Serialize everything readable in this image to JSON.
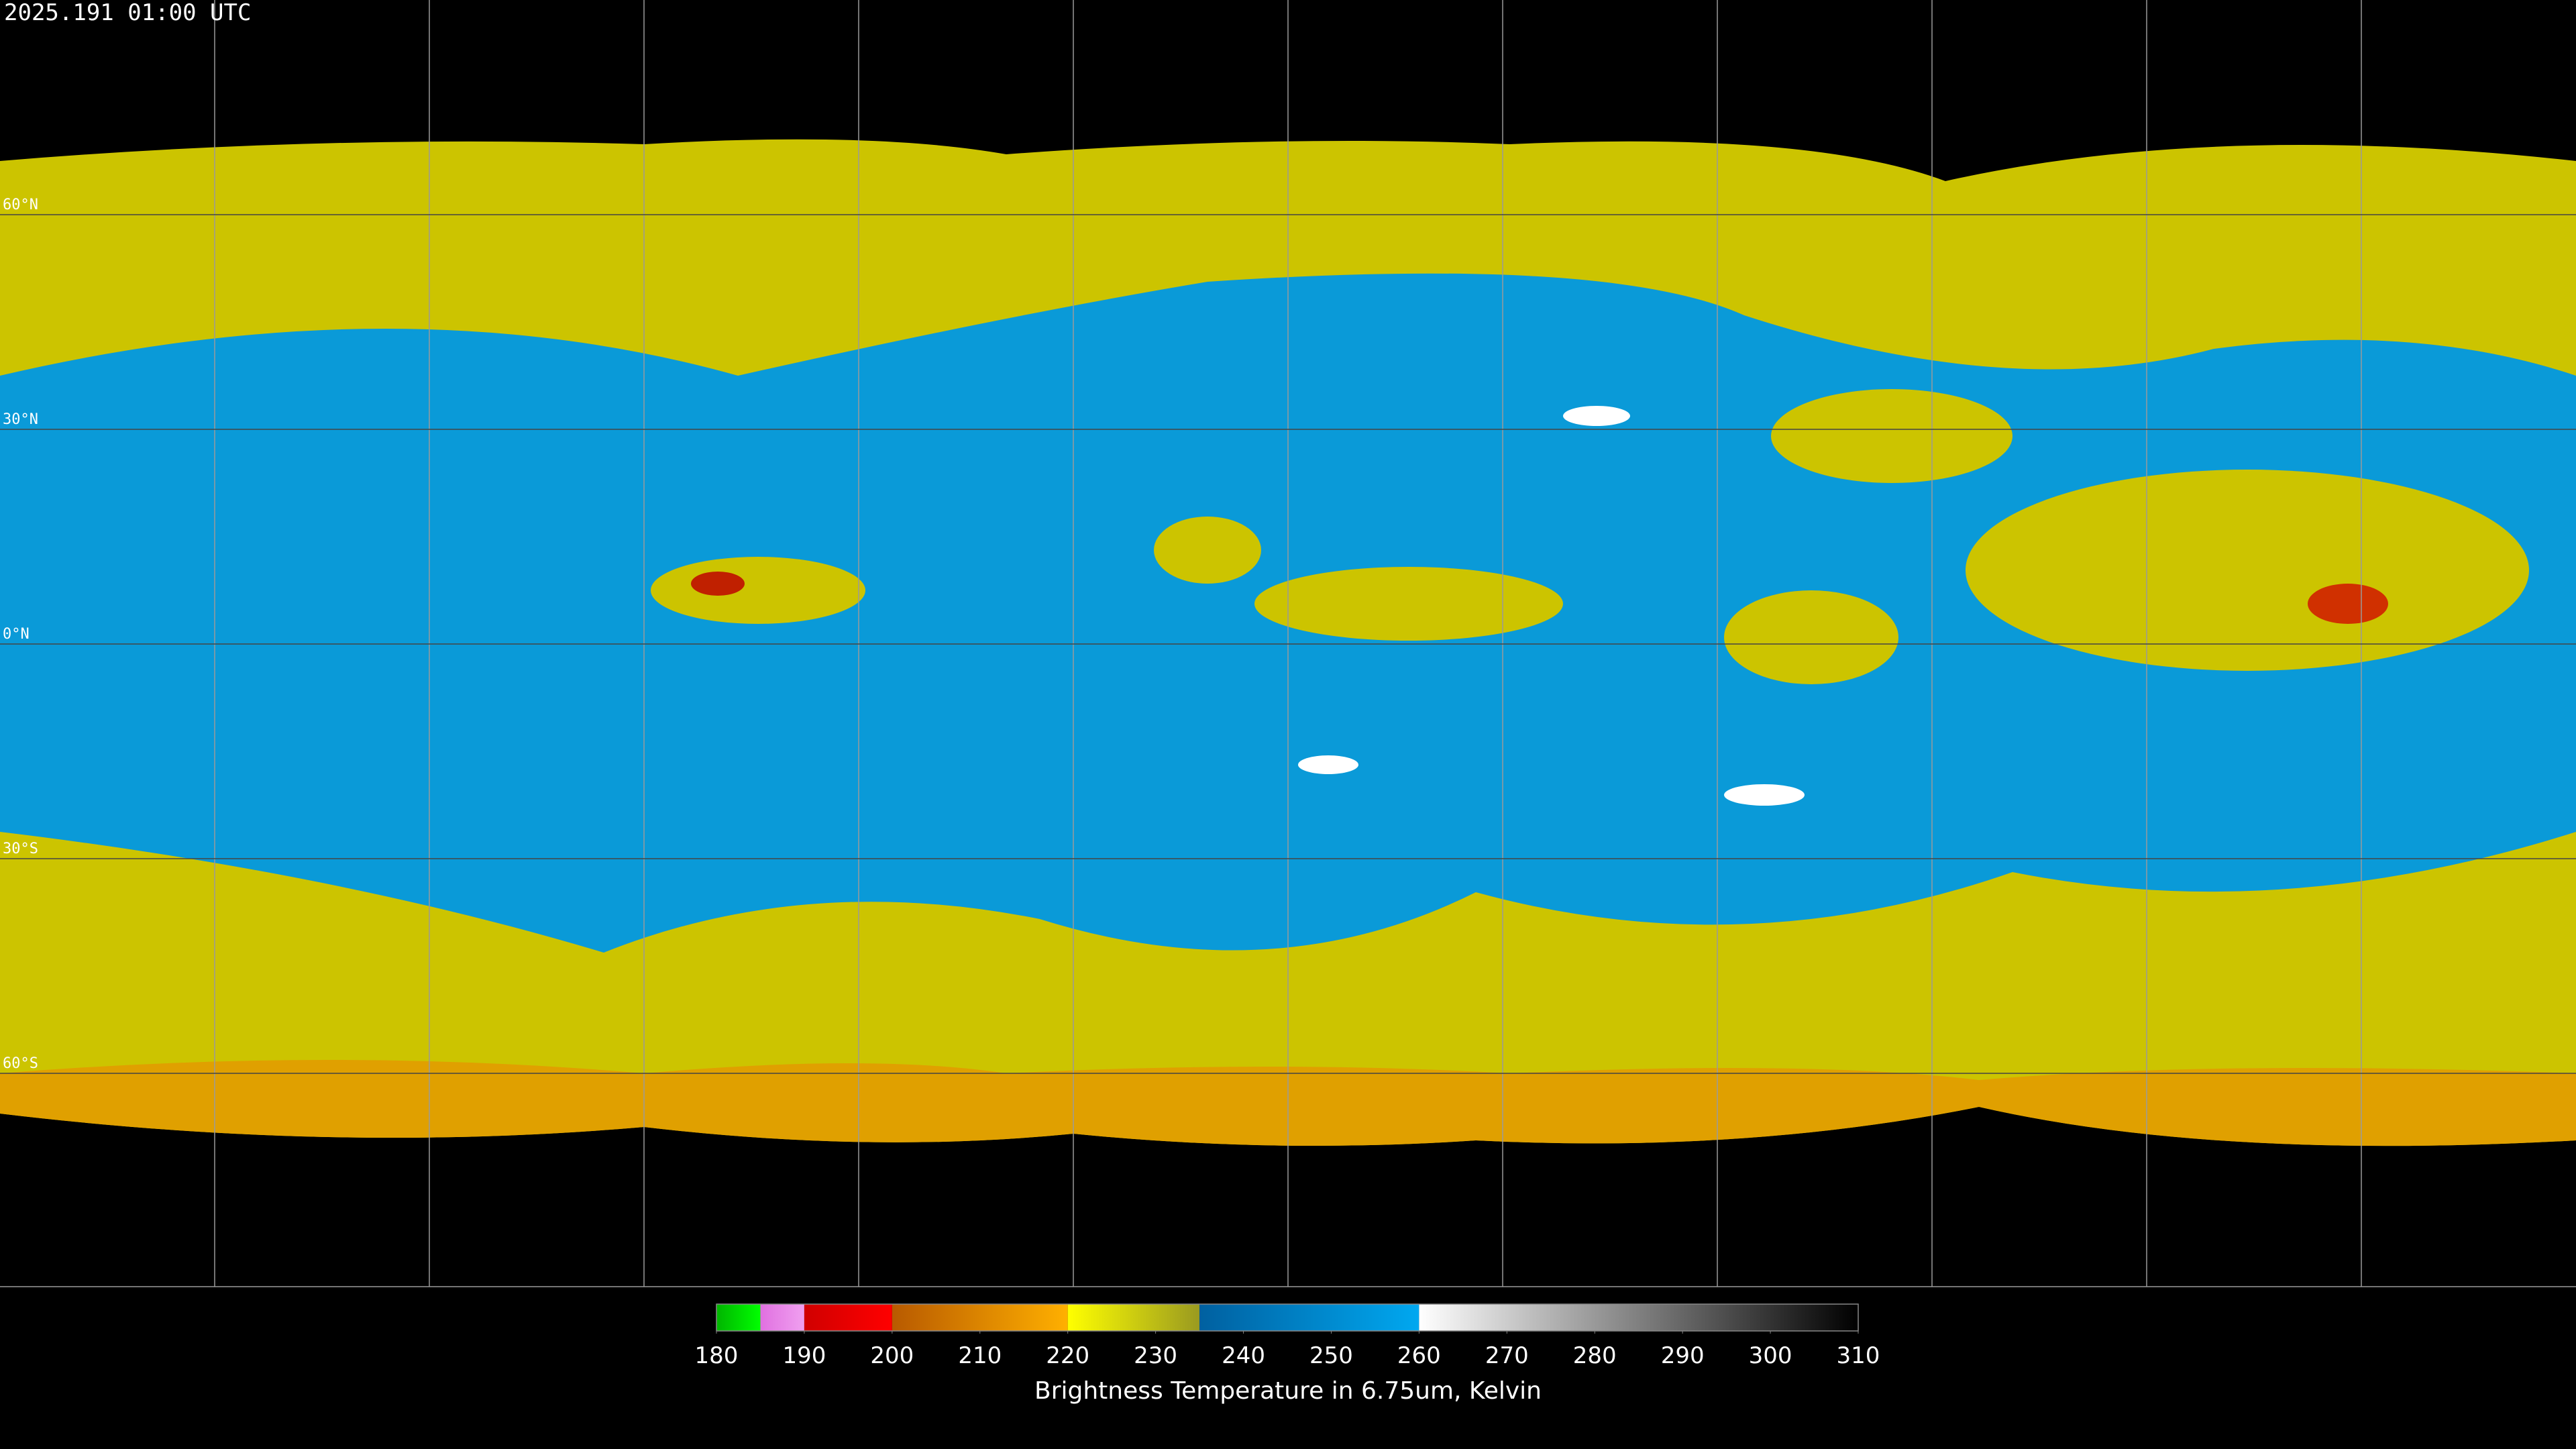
{
  "timestamp": "2025.191 01:00 UTC",
  "latitude_labels": [
    "60°N",
    "30°N",
    "0°N",
    "30°S",
    "60°S"
  ],
  "colorbar": {
    "label": "Brightness Temperature in 6.75um, Kelvin",
    "range": [
      180,
      310
    ],
    "ticks": [
      180,
      190,
      200,
      210,
      220,
      230,
      240,
      250,
      260,
      270,
      280,
      290,
      300,
      310
    ],
    "segments": [
      {
        "from": 180,
        "to": 185,
        "colors": [
          "#00b400",
          "#00ff00"
        ]
      },
      {
        "from": 185,
        "to": 190,
        "colors": [
          "#e070e0",
          "#f0a0f0"
        ]
      },
      {
        "from": 190,
        "to": 200,
        "colors": [
          "#d00000",
          "#ff0000"
        ]
      },
      {
        "from": 200,
        "to": 220,
        "colors": [
          "#b85a00",
          "#ffb000"
        ]
      },
      {
        "from": 220,
        "to": 235,
        "colors": [
          "#ffff00",
          "#9a9a20"
        ]
      },
      {
        "from": 235,
        "to": 260,
        "colors": [
          "#0060a0",
          "#00a8f0"
        ]
      },
      {
        "from": 260,
        "to": 310,
        "colors": [
          "#ffffff",
          "#000000"
        ]
      }
    ]
  }
}
